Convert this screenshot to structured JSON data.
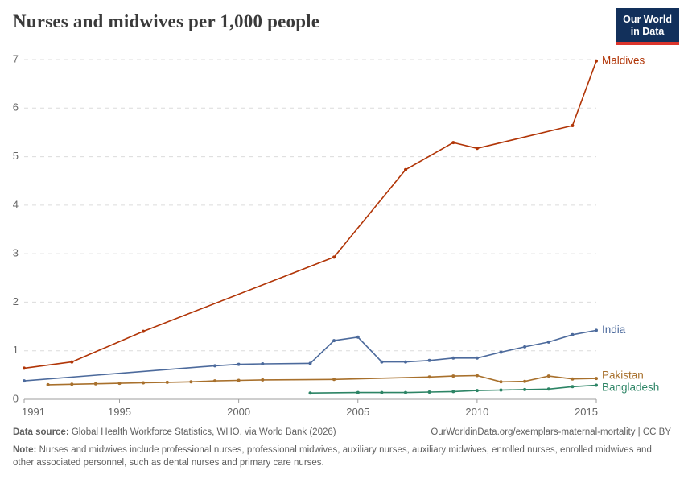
{
  "header": {
    "title": "Nurses and midwives per 1,000 people",
    "logo": {
      "line1": "Our World",
      "line2": "in Data",
      "bg": "#12305b",
      "stripe": "#dc352c"
    }
  },
  "chart_data": {
    "type": "line",
    "title": "Nurses and midwives per 1,000 people",
    "xlabel": "",
    "ylabel": "",
    "xlim": [
      1991,
      2015
    ],
    "ylim": [
      0,
      7
    ],
    "xticks": [
      1991,
      1995,
      2000,
      2005,
      2010,
      2015
    ],
    "yticks": [
      0,
      1,
      2,
      3,
      4,
      5,
      6,
      7
    ],
    "grid": "horizontal-dashed",
    "legend_position": "end-of-line labels",
    "axis_color": "#9e9e9e",
    "gridline_color": "#dcdcdc",
    "tick_label_color": "#666666",
    "series": [
      {
        "name": "Maldives",
        "color": "#b13507",
        "points": [
          [
            1991,
            0.64
          ],
          [
            1993,
            0.77
          ],
          [
            1996,
            1.4
          ],
          [
            2004,
            2.93
          ],
          [
            2007,
            4.73
          ],
          [
            2009,
            5.29
          ],
          [
            2010,
            5.17
          ],
          [
            2014,
            5.64
          ],
          [
            2015,
            6.97
          ]
        ]
      },
      {
        "name": "India",
        "color": "#4c6a9c",
        "points": [
          [
            1991,
            0.38
          ],
          [
            1999,
            0.69
          ],
          [
            2000,
            0.72
          ],
          [
            2001,
            0.73
          ],
          [
            2003,
            0.74
          ],
          [
            2004,
            1.21
          ],
          [
            2005,
            1.28
          ],
          [
            2006,
            0.77
          ],
          [
            2007,
            0.77
          ],
          [
            2008,
            0.8
          ],
          [
            2009,
            0.85
          ],
          [
            2010,
            0.85
          ],
          [
            2011,
            0.97
          ],
          [
            2012,
            1.08
          ],
          [
            2013,
            1.18
          ],
          [
            2014,
            1.33
          ],
          [
            2015,
            1.42
          ]
        ]
      },
      {
        "name": "Pakistan",
        "color": "#a8702c",
        "points": [
          [
            1992,
            0.3
          ],
          [
            1993,
            0.31
          ],
          [
            1994,
            0.32
          ],
          [
            1995,
            0.33
          ],
          [
            1996,
            0.34
          ],
          [
            1997,
            0.35
          ],
          [
            1998,
            0.36
          ],
          [
            1999,
            0.38
          ],
          [
            2000,
            0.39
          ],
          [
            2001,
            0.4
          ],
          [
            2004,
            0.41
          ],
          [
            2008,
            0.46
          ],
          [
            2009,
            0.48
          ],
          [
            2010,
            0.49
          ],
          [
            2011,
            0.36
          ],
          [
            2012,
            0.37
          ],
          [
            2013,
            0.48
          ],
          [
            2014,
            0.42
          ],
          [
            2015,
            0.43
          ]
        ]
      },
      {
        "name": "Bangladesh",
        "color": "#2c8465",
        "points": [
          [
            2003,
            0.13
          ],
          [
            2005,
            0.14
          ],
          [
            2006,
            0.14
          ],
          [
            2007,
            0.14
          ],
          [
            2008,
            0.15
          ],
          [
            2009,
            0.16
          ],
          [
            2010,
            0.18
          ],
          [
            2011,
            0.19
          ],
          [
            2012,
            0.2
          ],
          [
            2013,
            0.21
          ],
          [
            2014,
            0.26
          ],
          [
            2015,
            0.29
          ]
        ]
      }
    ]
  },
  "footer": {
    "source_label": "Data source:",
    "source_text": " Global Health Workforce Statistics, WHO, via World Bank (2026)",
    "attribution": "OurWorldinData.org/exemplars-maternal-mortality | CC BY",
    "note_label": "Note:",
    "note_text": " Nurses and midwives include professional nurses, professional midwives, auxiliary nurses, auxiliary midwives, enrolled nurses, enrolled midwives and other associated personnel, such as dental nurses and primary care nurses."
  }
}
